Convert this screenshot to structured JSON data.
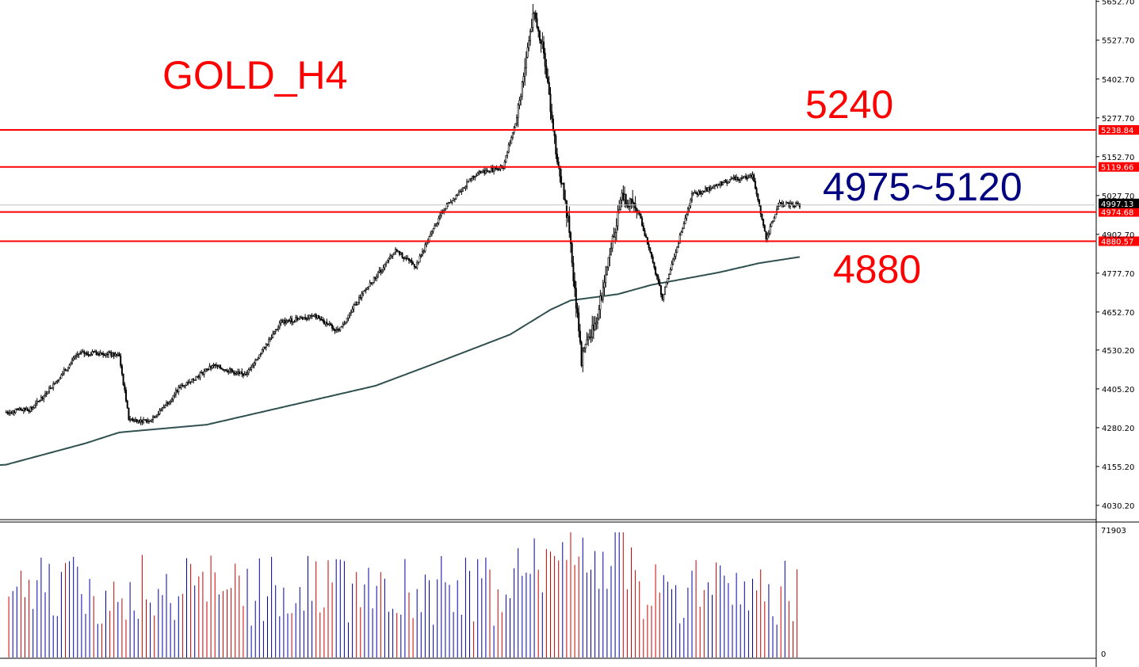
{
  "chart_data": {
    "type": "candlestick",
    "symbol_title": "GOLD_H4",
    "ylim": [
      4030,
      5652
    ],
    "y_ticks": [
      "5652.70",
      "5527.70",
      "5402.70",
      "5277.70",
      "5152.70",
      "5027.70",
      "4902.70",
      "4777.70",
      "4652.70",
      "4530.20",
      "4405.20",
      "4280.20",
      "4155.20",
      "4030.20"
    ],
    "current_price": "4997.13",
    "level_lines": [
      {
        "value": 5238.84,
        "tag": "5238.84",
        "color": "#ff0000"
      },
      {
        "value": 5119.66,
        "tag": "5119.66",
        "color": "#ff0000"
      },
      {
        "value": 4974.68,
        "tag": "4974.68",
        "color": "#ff0000"
      },
      {
        "value": 4880.57,
        "tag": "4880.57",
        "color": "#ff0000"
      }
    ],
    "annotations": [
      {
        "text": "5240",
        "color": "#ff0000"
      },
      {
        "text": "4975~5120",
        "color": "#000080"
      },
      {
        "text": "4880",
        "color": "#ff0000"
      }
    ],
    "volume_max_label": "71903",
    "volume_zero_label": "0",
    "moving_average_color": "#2f4f4f",
    "anchors": [
      {
        "i": 0,
        "p": 4330
      },
      {
        "i": 20,
        "p": 4340
      },
      {
        "i": 40,
        "p": 4440
      },
      {
        "i": 55,
        "p": 4520
      },
      {
        "i": 75,
        "p": 4520
      },
      {
        "i": 85,
        "p": 4510
      },
      {
        "i": 92,
        "p": 4310
      },
      {
        "i": 105,
        "p": 4300
      },
      {
        "i": 115,
        "p": 4330
      },
      {
        "i": 130,
        "p": 4410
      },
      {
        "i": 155,
        "p": 4480
      },
      {
        "i": 178,
        "p": 4450
      },
      {
        "i": 190,
        "p": 4520
      },
      {
        "i": 205,
        "p": 4620
      },
      {
        "i": 230,
        "p": 4640
      },
      {
        "i": 248,
        "p": 4590
      },
      {
        "i": 262,
        "p": 4690
      },
      {
        "i": 290,
        "p": 4850
      },
      {
        "i": 305,
        "p": 4800
      },
      {
        "i": 325,
        "p": 4980
      },
      {
        "i": 350,
        "p": 5100
      },
      {
        "i": 370,
        "p": 5120
      },
      {
        "i": 380,
        "p": 5280
      },
      {
        "i": 392,
        "p": 5610
      },
      {
        "i": 400,
        "p": 5500
      },
      {
        "i": 408,
        "p": 5200
      },
      {
        "i": 418,
        "p": 4950
      },
      {
        "i": 428,
        "p": 4500
      },
      {
        "i": 440,
        "p": 4650
      },
      {
        "i": 458,
        "p": 5020
      },
      {
        "i": 470,
        "p": 4980
      },
      {
        "i": 488,
        "p": 4700
      },
      {
        "i": 510,
        "p": 5030
      },
      {
        "i": 540,
        "p": 5080
      },
      {
        "i": 555,
        "p": 5090
      },
      {
        "i": 565,
        "p": 4890
      },
      {
        "i": 575,
        "p": 5000
      },
      {
        "i": 590,
        "p": 4997
      }
    ],
    "ma_anchors": [
      {
        "i": 0,
        "p": 4160
      },
      {
        "i": 60,
        "p": 4230
      },
      {
        "i": 85,
        "p": 4265
      },
      {
        "i": 150,
        "p": 4290
      },
      {
        "i": 215,
        "p": 4355
      },
      {
        "i": 275,
        "p": 4415
      },
      {
        "i": 315,
        "p": 4480
      },
      {
        "i": 375,
        "p": 4580
      },
      {
        "i": 405,
        "p": 4660
      },
      {
        "i": 420,
        "p": 4690
      },
      {
        "i": 455,
        "p": 4710
      },
      {
        "i": 480,
        "p": 4740
      },
      {
        "i": 530,
        "p": 4780
      },
      {
        "i": 560,
        "p": 4810
      },
      {
        "i": 590,
        "p": 4830
      }
    ]
  }
}
